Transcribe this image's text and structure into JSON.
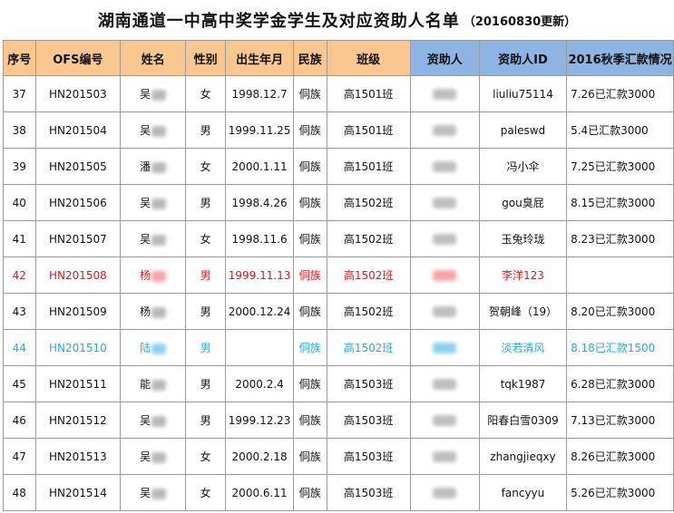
{
  "title": {
    "main": "湖南通道一中高中奖学金学生及对应资助人名单",
    "sub": "（20160830更新）"
  },
  "headers": [
    "序号",
    "OFS编号",
    "姓名",
    "性别",
    "出生年月",
    "民族",
    "班级",
    "资助人",
    "资助人ID",
    "2016秋季汇款情况"
  ],
  "rows": [
    {
      "no": "37",
      "ofs": "HN201503",
      "name": "吴",
      "gender": "女",
      "birth": "1998.12.7",
      "ethnic": "侗族",
      "cls": "高1501班",
      "sponsor_id": "liuliu75114",
      "remit": "7.26已汇款3000"
    },
    {
      "no": "38",
      "ofs": "HN201504",
      "name": "吴",
      "gender": "男",
      "birth": "1999.11.25",
      "ethnic": "侗族",
      "cls": "高1501班",
      "sponsor_id": "paleswd",
      "remit": "5.4已汇款3000"
    },
    {
      "no": "39",
      "ofs": "HN201505",
      "name": "潘",
      "gender": "女",
      "birth": "2000.1.11",
      "ethnic": "侗族",
      "cls": "高1501班",
      "sponsor_id": "冯小伞",
      "remit": "7.25已汇款3000"
    },
    {
      "no": "40",
      "ofs": "HN201506",
      "name": "吴",
      "gender": "男",
      "birth": "1998.4.26",
      "ethnic": "侗族",
      "cls": "高1502班",
      "sponsor_id": "gou臭屁",
      "remit": "8.15已汇款3000"
    },
    {
      "no": "41",
      "ofs": "HN201507",
      "name": "吴",
      "gender": "女",
      "birth": "1998.11.6",
      "ethnic": "侗族",
      "cls": "高1502班",
      "sponsor_id": "玉兔玲珑",
      "remit": "8.23已汇款3000"
    },
    {
      "no": "42",
      "ofs": "HN201508",
      "name": "杨",
      "gender": "男",
      "birth": "1999.11.13",
      "ethnic": "侗族",
      "cls": "高1502班",
      "sponsor_id": "李洋123",
      "remit": "",
      "style": "red"
    },
    {
      "no": "43",
      "ofs": "HN201509",
      "name": "杨",
      "gender": "男",
      "birth": "2000.12.24",
      "ethnic": "侗族",
      "cls": "高1502班",
      "sponsor_id": "贺朝峰（19）",
      "remit": "8.20已汇款3000"
    },
    {
      "no": "44",
      "ofs": "HN201510",
      "name": "陆",
      "gender": "男",
      "birth": "",
      "ethnic": "侗族",
      "cls": "高1502班",
      "sponsor_id": "淡若清风",
      "remit": "8.18已汇款1500",
      "style": "cyan"
    },
    {
      "no": "45",
      "ofs": "HN201511",
      "name": "能",
      "gender": "男",
      "birth": "2000.2.4",
      "ethnic": "侗族",
      "cls": "高1503班",
      "sponsor_id": "tqk1987",
      "remit": "6.28已汇款3000"
    },
    {
      "no": "46",
      "ofs": "HN201512",
      "name": "吴",
      "gender": "男",
      "birth": "1999.12.23",
      "ethnic": "侗族",
      "cls": "高1503班",
      "sponsor_id": "阳春白雪0309",
      "remit": "7.13已汇款3000"
    },
    {
      "no": "47",
      "ofs": "HN201513",
      "name": "吴",
      "gender": "女",
      "birth": "2000.2.18",
      "ethnic": "侗族",
      "cls": "高1503班",
      "sponsor_id": "zhangjieqxy",
      "remit": "8.26已汇款3000"
    },
    {
      "no": "48",
      "ofs": "HN201514",
      "name": "吴",
      "gender": "女",
      "birth": "2000.6.11",
      "ethnic": "侗族",
      "cls": "高1503班",
      "sponsor_id": "fancyyu",
      "remit": "5.26已汇款3000"
    }
  ]
}
